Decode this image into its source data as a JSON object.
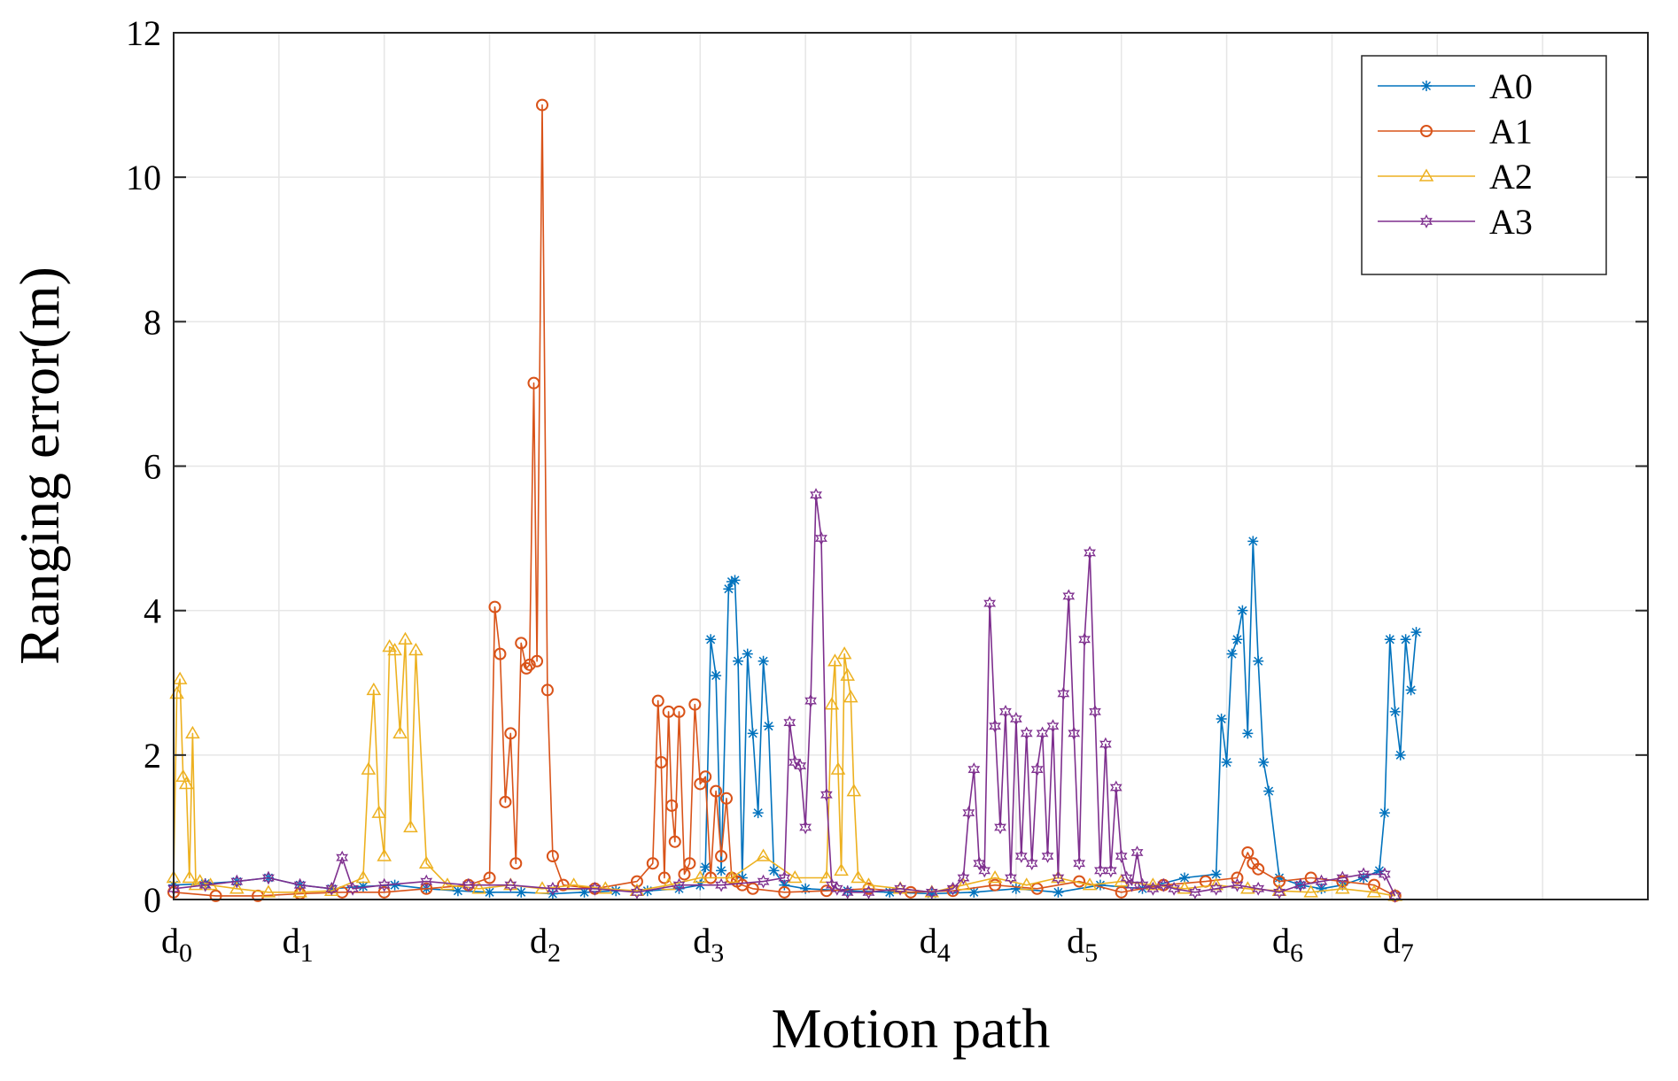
{
  "chart_data": {
    "type": "line",
    "title": "",
    "xlabel": "Motion path",
    "ylabel": "Ranging error(m)",
    "ylim": [
      0,
      12
    ],
    "xlim": [
      0,
      14
    ],
    "yticks": [
      0,
      2,
      4,
      6,
      8,
      10,
      12
    ],
    "grid": true,
    "legend_position": "top-right",
    "xtick_labels": [
      {
        "base": "d",
        "sub": "0",
        "x": 0.0
      },
      {
        "base": "d",
        "sub": "1",
        "x": 1.15
      },
      {
        "base": "d",
        "sub": "2",
        "x": 3.5
      },
      {
        "base": "d",
        "sub": "3",
        "x": 5.05
      },
      {
        "base": "d",
        "sub": "4",
        "x": 7.2
      },
      {
        "base": "d",
        "sub": "5",
        "x": 8.6
      },
      {
        "base": "d",
        "sub": "6",
        "x": 10.55
      },
      {
        "base": "d",
        "sub": "7",
        "x": 11.6
      }
    ],
    "series": [
      {
        "name": "A0",
        "color": "#0072BD",
        "marker": "asterisk",
        "x": [
          0.0,
          0.3,
          0.6,
          0.9,
          1.2,
          1.5,
          1.8,
          2.1,
          2.4,
          2.7,
          3.0,
          3.3,
          3.6,
          3.9,
          4.2,
          4.5,
          4.8,
          5.0,
          5.05,
          5.1,
          5.15,
          5.2,
          5.27,
          5.3,
          5.33,
          5.36,
          5.4,
          5.45,
          5.5,
          5.55,
          5.6,
          5.65,
          5.7,
          5.8,
          6.0,
          6.4,
          6.8,
          7.2,
          7.6,
          8.0,
          8.4,
          8.8,
          9.2,
          9.6,
          9.9,
          9.95,
          10.0,
          10.05,
          10.1,
          10.15,
          10.2,
          10.25,
          10.3,
          10.35,
          10.4,
          10.5,
          10.7,
          10.9,
          11.1,
          11.3,
          11.45,
          11.5,
          11.55,
          11.6,
          11.65,
          11.7,
          11.75,
          11.8
        ],
        "values": [
          0.2,
          0.22,
          0.25,
          0.3,
          0.2,
          0.15,
          0.18,
          0.2,
          0.15,
          0.12,
          0.1,
          0.1,
          0.08,
          0.1,
          0.12,
          0.12,
          0.15,
          0.2,
          0.45,
          3.6,
          3.1,
          0.4,
          4.3,
          4.4,
          4.42,
          3.3,
          0.3,
          3.4,
          2.3,
          1.2,
          3.3,
          2.4,
          0.4,
          0.2,
          0.15,
          0.12,
          0.1,
          0.08,
          0.1,
          0.15,
          0.1,
          0.2,
          0.15,
          0.3,
          0.35,
          2.5,
          1.9,
          3.4,
          3.6,
          4.0,
          2.3,
          4.96,
          3.3,
          1.9,
          1.5,
          0.3,
          0.2,
          0.15,
          0.2,
          0.3,
          0.4,
          1.2,
          3.6,
          2.6,
          2.0,
          3.6,
          2.9,
          3.7
        ]
      },
      {
        "name": "A1",
        "color": "#D95319",
        "marker": "circle",
        "x": [
          0.0,
          0.4,
          0.8,
          1.2,
          1.6,
          2.0,
          2.4,
          2.8,
          3.0,
          3.05,
          3.1,
          3.15,
          3.2,
          3.25,
          3.3,
          3.35,
          3.38,
          3.42,
          3.45,
          3.5,
          3.55,
          3.6,
          3.7,
          4.0,
          4.4,
          4.55,
          4.6,
          4.63,
          4.66,
          4.7,
          4.73,
          4.76,
          4.8,
          4.85,
          4.9,
          4.95,
          5.0,
          5.05,
          5.1,
          5.15,
          5.2,
          5.25,
          5.3,
          5.35,
          5.4,
          5.5,
          5.8,
          6.2,
          6.6,
          7.0,
          7.4,
          7.8,
          8.2,
          8.6,
          9.0,
          9.4,
          9.8,
          10.1,
          10.2,
          10.25,
          10.3,
          10.5,
          10.8,
          11.1,
          11.4,
          11.6
        ],
        "values": [
          0.1,
          0.05,
          0.05,
          0.08,
          0.1,
          0.1,
          0.15,
          0.2,
          0.3,
          4.05,
          3.4,
          1.35,
          2.3,
          0.5,
          3.55,
          3.2,
          3.25,
          7.15,
          3.3,
          11.0,
          2.9,
          0.6,
          0.2,
          0.15,
          0.25,
          0.5,
          2.75,
          1.9,
          0.3,
          2.6,
          1.3,
          0.8,
          2.6,
          0.35,
          0.5,
          2.7,
          1.6,
          1.7,
          0.3,
          1.5,
          0.6,
          1.4,
          0.3,
          0.25,
          0.2,
          0.15,
          0.1,
          0.12,
          0.15,
          0.1,
          0.12,
          0.2,
          0.15,
          0.25,
          0.1,
          0.2,
          0.25,
          0.3,
          0.65,
          0.5,
          0.42,
          0.25,
          0.3,
          0.25,
          0.2,
          0.05
        ]
      },
      {
        "name": "A2",
        "color": "#EDB120",
        "marker": "triangle",
        "x": [
          0.0,
          0.03,
          0.06,
          0.09,
          0.12,
          0.15,
          0.18,
          0.21,
          0.25,
          0.35,
          0.6,
          0.9,
          1.2,
          1.5,
          1.8,
          1.85,
          1.9,
          1.95,
          2.0,
          2.05,
          2.1,
          2.15,
          2.2,
          2.25,
          2.3,
          2.4,
          2.6,
          2.9,
          3.2,
          3.5,
          3.8,
          4.1,
          4.4,
          4.7,
          5.0,
          5.3,
          5.6,
          5.9,
          6.2,
          6.25,
          6.28,
          6.31,
          6.34,
          6.37,
          6.4,
          6.43,
          6.46,
          6.5,
          6.6,
          6.9,
          7.2,
          7.5,
          7.8,
          8.1,
          8.4,
          8.7,
          9.0,
          9.3,
          9.6,
          9.9,
          10.2,
          10.5,
          10.8,
          11.1,
          11.4,
          11.6
        ],
        "values": [
          0.3,
          2.85,
          3.05,
          1.7,
          1.6,
          0.3,
          2.3,
          0.2,
          0.25,
          0.2,
          0.15,
          0.1,
          0.1,
          0.12,
          0.3,
          1.8,
          2.9,
          1.2,
          0.6,
          3.5,
          3.45,
          2.3,
          3.6,
          1.0,
          3.45,
          0.5,
          0.2,
          0.15,
          0.2,
          0.15,
          0.2,
          0.15,
          0.12,
          0.2,
          0.3,
          0.3,
          0.6,
          0.3,
          0.3,
          2.7,
          3.3,
          1.8,
          0.4,
          3.4,
          3.1,
          2.8,
          1.5,
          0.3,
          0.2,
          0.15,
          0.1,
          0.2,
          0.3,
          0.2,
          0.3,
          0.2,
          0.25,
          0.2,
          0.15,
          0.2,
          0.15,
          0.12,
          0.1,
          0.15,
          0.1,
          0.05
        ]
      },
      {
        "name": "A3",
        "color": "#7E2F8E",
        "marker": "hexagram",
        "x": [
          0.0,
          0.3,
          0.6,
          0.9,
          1.2,
          1.5,
          1.6,
          1.7,
          2.0,
          2.4,
          2.8,
          3.2,
          3.6,
          4.0,
          4.4,
          4.8,
          5.2,
          5.6,
          5.8,
          5.85,
          5.9,
          5.95,
          6.0,
          6.05,
          6.1,
          6.15,
          6.2,
          6.25,
          6.3,
          6.4,
          6.6,
          6.9,
          7.2,
          7.4,
          7.5,
          7.55,
          7.6,
          7.65,
          7.7,
          7.75,
          7.8,
          7.85,
          7.9,
          7.95,
          8.0,
          8.05,
          8.1,
          8.15,
          8.2,
          8.25,
          8.3,
          8.35,
          8.4,
          8.45,
          8.5,
          8.55,
          8.6,
          8.65,
          8.7,
          8.75,
          8.8,
          8.85,
          8.9,
          8.95,
          9.0,
          9.05,
          9.1,
          9.15,
          9.2,
          9.3,
          9.4,
          9.5,
          9.7,
          9.9,
          10.1,
          10.3,
          10.5,
          10.7,
          10.9,
          11.1,
          11.3,
          11.5,
          11.6
        ],
        "values": [
          0.15,
          0.2,
          0.25,
          0.3,
          0.2,
          0.15,
          0.58,
          0.15,
          0.2,
          0.25,
          0.2,
          0.2,
          0.15,
          0.15,
          0.1,
          0.2,
          0.2,
          0.25,
          0.3,
          2.45,
          1.9,
          1.85,
          1.0,
          2.75,
          5.6,
          5.0,
          1.45,
          0.2,
          0.15,
          0.1,
          0.1,
          0.15,
          0.1,
          0.15,
          0.3,
          1.2,
          1.8,
          0.5,
          0.4,
          4.1,
          2.4,
          1.0,
          2.6,
          0.3,
          2.5,
          0.6,
          2.3,
          0.5,
          1.8,
          2.3,
          0.6,
          2.4,
          0.3,
          2.85,
          4.2,
          2.3,
          0.5,
          3.6,
          4.8,
          2.6,
          0.4,
          2.15,
          0.4,
          1.55,
          0.6,
          0.3,
          0.2,
          0.65,
          0.2,
          0.15,
          0.2,
          0.15,
          0.1,
          0.15,
          0.2,
          0.15,
          0.1,
          0.2,
          0.25,
          0.3,
          0.35,
          0.35,
          0.05
        ]
      }
    ]
  }
}
